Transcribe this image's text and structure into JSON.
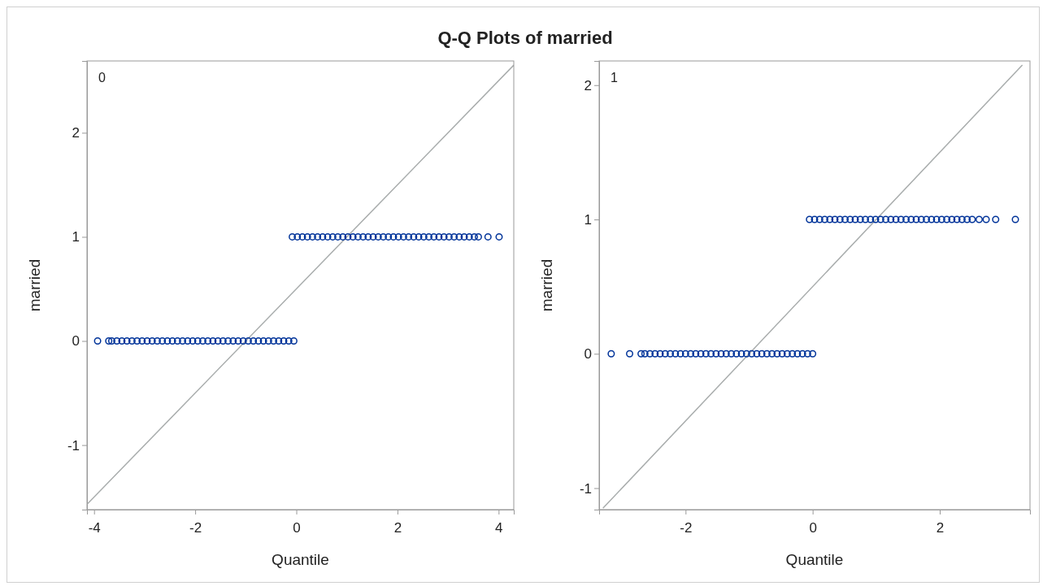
{
  "chart_data": [
    {
      "type": "scatter",
      "title": "Q-Q Plots of married",
      "xlabel": "Quantile",
      "ylabel": "married",
      "annotations": [
        "0"
      ],
      "xlim": [
        -4.14,
        4.3
      ],
      "ylim": [
        -1.62,
        2.69
      ],
      "xticks": [
        -4,
        -2,
        0,
        2,
        4
      ],
      "yticks": [
        -1,
        0,
        1,
        2
      ],
      "grid": false,
      "series": [
        {
          "marker": "circle",
          "color": "#003399",
          "x": [
            -3.93,
            -3.71,
            -3.65,
            -3.55,
            -3.45,
            -3.35,
            -3.25,
            -3.15,
            -3.05,
            -2.95,
            -2.85,
            -2.75,
            -2.65,
            -2.55,
            -2.45,
            -2.35,
            -2.25,
            -2.15,
            -2.05,
            -1.95,
            -1.85,
            -1.75,
            -1.65,
            -1.55,
            -1.45,
            -1.35,
            -1.25,
            -1.15,
            -1.05,
            -0.95,
            -0.85,
            -0.75,
            -0.65,
            -0.55,
            -0.45,
            -0.35,
            -0.25,
            -0.15,
            -0.05
          ],
          "values": [
            0,
            0,
            0,
            0,
            0,
            0,
            0,
            0,
            0,
            0,
            0,
            0,
            0,
            0,
            0,
            0,
            0,
            0,
            0,
            0,
            0,
            0,
            0,
            0,
            0,
            0,
            0,
            0,
            0,
            0,
            0,
            0,
            0,
            0,
            0,
            0,
            0,
            0,
            0
          ]
        },
        {
          "marker": "circle",
          "color": "#003399",
          "x": [
            -0.08,
            0.02,
            0.12,
            0.22,
            0.32,
            0.42,
            0.52,
            0.62,
            0.72,
            0.82,
            0.92,
            1.02,
            1.12,
            1.22,
            1.32,
            1.42,
            1.52,
            1.62,
            1.72,
            1.82,
            1.92,
            2.02,
            2.12,
            2.22,
            2.32,
            2.42,
            2.52,
            2.62,
            2.72,
            2.82,
            2.92,
            3.02,
            3.12,
            3.22,
            3.32,
            3.42,
            3.52,
            3.6,
            3.79,
            4.01
          ],
          "values": [
            1,
            1,
            1,
            1,
            1,
            1,
            1,
            1,
            1,
            1,
            1,
            1,
            1,
            1,
            1,
            1,
            1,
            1,
            1,
            1,
            1,
            1,
            1,
            1,
            1,
            1,
            1,
            1,
            1,
            1,
            1,
            1,
            1,
            1,
            1,
            1,
            1,
            1,
            1,
            1
          ]
        },
        {
          "type": "line",
          "marker": "none",
          "color": "#a8acac",
          "x": [
            -4.14,
            4.3
          ],
          "values": [
            -1.57,
            2.65
          ]
        }
      ]
    },
    {
      "type": "scatter",
      "xlabel": "Quantile",
      "ylabel": "married",
      "annotations": [
        "1"
      ],
      "xlim": [
        -3.36,
        3.42
      ],
      "ylim": [
        -1.16,
        2.18
      ],
      "xticks": [
        -2,
        0,
        2
      ],
      "yticks": [
        -1,
        0,
        1,
        2
      ],
      "grid": false,
      "series": [
        {
          "marker": "circle",
          "color": "#003399",
          "x": [
            -3.17,
            -2.88,
            -2.7,
            -2.64,
            -2.56,
            -2.48,
            -2.4,
            -2.32,
            -2.24,
            -2.16,
            -2.08,
            -2,
            -1.92,
            -1.84,
            -1.76,
            -1.68,
            -1.6,
            -1.52,
            -1.44,
            -1.36,
            -1.28,
            -1.2,
            -1.12,
            -1.04,
            -0.96,
            -0.88,
            -0.8,
            -0.72,
            -0.64,
            -0.56,
            -0.48,
            -0.4,
            -0.32,
            -0.24,
            -0.16,
            -0.08,
            0
          ],
          "values": [
            0,
            0,
            0,
            0,
            0,
            0,
            0,
            0,
            0,
            0,
            0,
            0,
            0,
            0,
            0,
            0,
            0,
            0,
            0,
            0,
            0,
            0,
            0,
            0,
            0,
            0,
            0,
            0,
            0,
            0,
            0,
            0,
            0,
            0,
            0,
            0,
            0
          ]
        },
        {
          "marker": "circle",
          "color": "#003399",
          "x": [
            -0.05,
            0.03,
            0.11,
            0.19,
            0.27,
            0.35,
            0.43,
            0.51,
            0.59,
            0.67,
            0.75,
            0.83,
            0.91,
            0.99,
            1.07,
            1.15,
            1.23,
            1.31,
            1.39,
            1.47,
            1.55,
            1.63,
            1.71,
            1.79,
            1.87,
            1.95,
            2.03,
            2.11,
            2.19,
            2.27,
            2.35,
            2.43,
            2.51,
            2.62,
            2.73,
            2.88,
            3.19
          ],
          "values": [
            1,
            1,
            1,
            1,
            1,
            1,
            1,
            1,
            1,
            1,
            1,
            1,
            1,
            1,
            1,
            1,
            1,
            1,
            1,
            1,
            1,
            1,
            1,
            1,
            1,
            1,
            1,
            1,
            1,
            1,
            1,
            1,
            1,
            1,
            1,
            1,
            1
          ]
        },
        {
          "type": "line",
          "marker": "none",
          "color": "#a8acac",
          "x": [
            -3.3,
            3.3
          ],
          "values": [
            -1.15,
            2.15
          ]
        }
      ]
    }
  ]
}
